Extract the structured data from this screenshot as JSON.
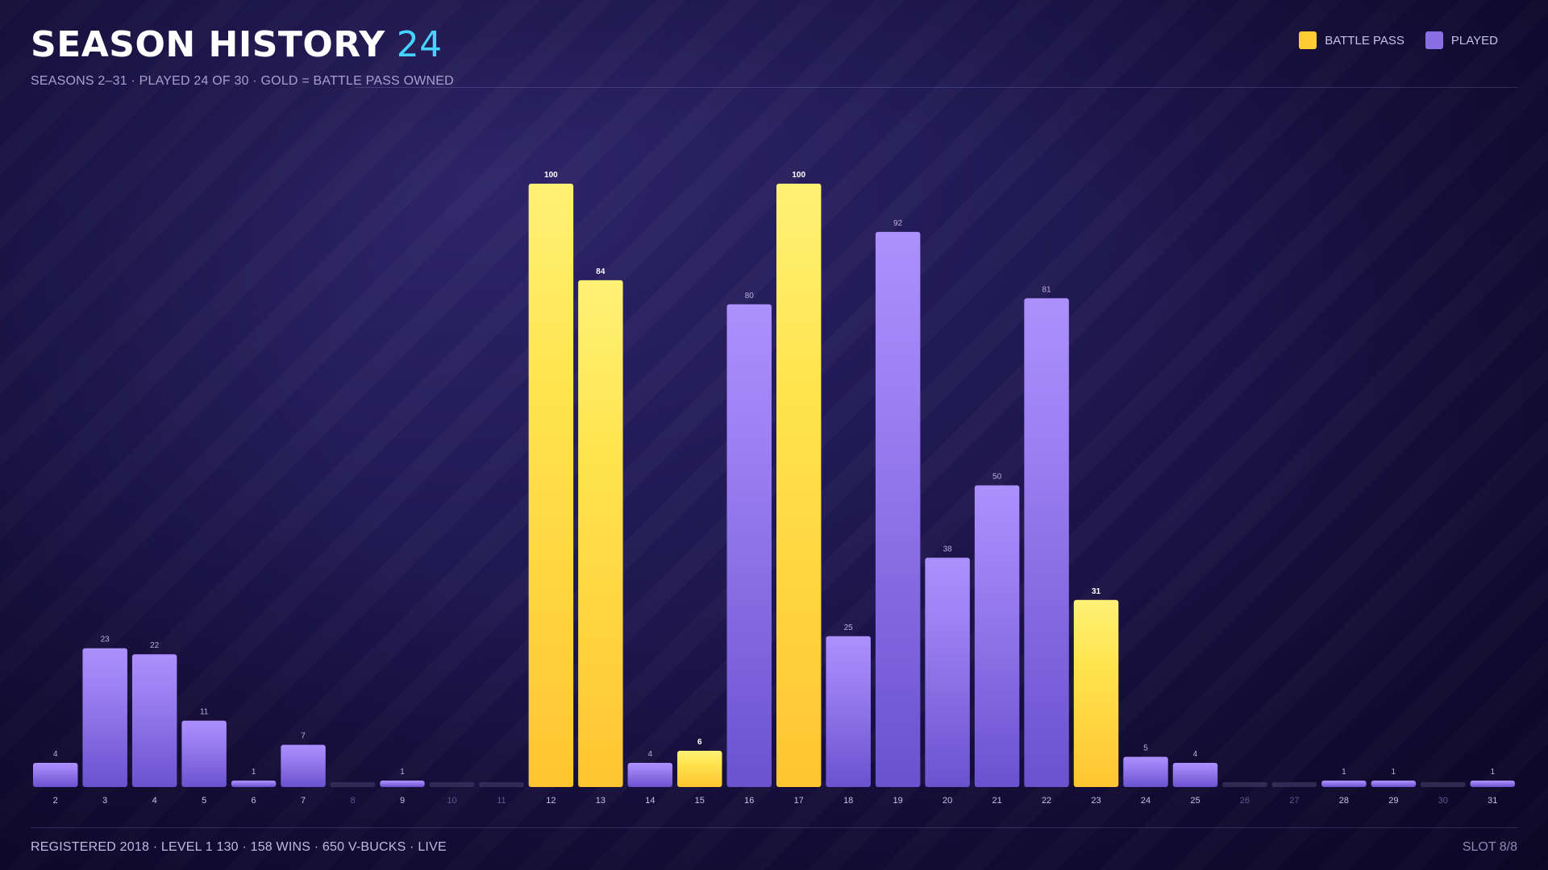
{
  "header": {
    "title": "SEASON HISTORY",
    "count": "24",
    "subtitle": "SEASONS 2–31  ·  PLAYED 24 OF 30  ·  GOLD = BATTLE PASS OWNED"
  },
  "legend": {
    "battle_pass_label": "BATTLE PASS",
    "played_label": "PLAYED"
  },
  "footer": {
    "stats": "REGISTERED 2018  ·  LEVEL 1 130  ·  158 WINS  ·  650 V-BUCKS  ·  LIVE",
    "slot": "SLOT 8/8"
  },
  "colors": {
    "battle_pass": "#ffcc33",
    "played": "#8a6ee6",
    "empty": "#3a3560",
    "count_accent": "#47d3ff"
  },
  "chart_data": {
    "type": "bar",
    "title": "SEASON HISTORY",
    "xlabel": "",
    "ylabel": "",
    "ylim": [
      0,
      100
    ],
    "grid": false,
    "legend_position": "top-right",
    "categories": [
      "2",
      "3",
      "4",
      "5",
      "6",
      "7",
      "8",
      "9",
      "10",
      "11",
      "12",
      "13",
      "14",
      "15",
      "16",
      "17",
      "18",
      "19",
      "20",
      "21",
      "22",
      "23",
      "24",
      "25",
      "26",
      "27",
      "28",
      "29",
      "30",
      "31"
    ],
    "values": [
      4,
      23,
      22,
      11,
      1,
      7,
      0,
      1,
      0,
      0,
      100,
      84,
      4,
      6,
      80,
      100,
      25,
      92,
      38,
      50,
      81,
      31,
      5,
      4,
      0,
      0,
      1,
      1,
      0,
      1
    ],
    "battle_pass": [
      false,
      false,
      false,
      false,
      false,
      false,
      false,
      false,
      false,
      false,
      true,
      true,
      false,
      true,
      false,
      true,
      false,
      false,
      false,
      false,
      false,
      true,
      false,
      false,
      false,
      false,
      false,
      false,
      false,
      false
    ],
    "series": [
      {
        "name": "BATTLE PASS",
        "color": "#ffcc33"
      },
      {
        "name": "PLAYED",
        "color": "#8a6ee6"
      }
    ]
  }
}
